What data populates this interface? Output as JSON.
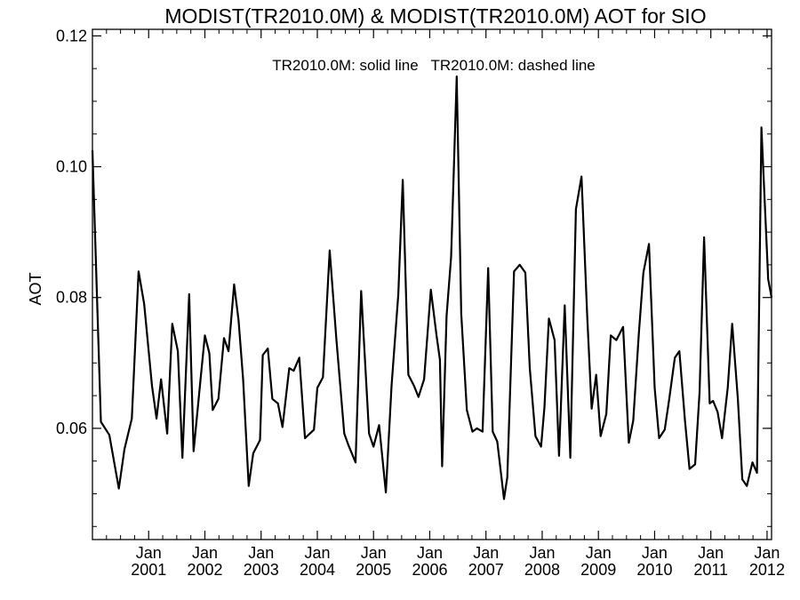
{
  "chart_data": {
    "type": "line",
    "title": "MODIST(TR2010.0M) & MODIST(TR2010.0M)  AOT for SIO",
    "annotation": "TR2010.0M: solid line   TR2010.0M: dashed line",
    "ylabel": "AOT",
    "xlabel": "",
    "ylim": [
      0.043,
      0.121
    ],
    "xlim": [
      2000.0,
      2012.08
    ],
    "grid": false,
    "y_ticks": [
      {
        "value": 0.06,
        "label": "0.06"
      },
      {
        "value": 0.08,
        "label": "0.08"
      },
      {
        "value": 0.1,
        "label": "0.10"
      },
      {
        "value": 0.12,
        "label": "0.12"
      }
    ],
    "x_ticks": [
      {
        "value": 2001.0,
        "month": "Jan",
        "year": "2001"
      },
      {
        "value": 2002.0,
        "month": "Jan",
        "year": "2002"
      },
      {
        "value": 2003.0,
        "month": "Jan",
        "year": "2003"
      },
      {
        "value": 2004.0,
        "month": "Jan",
        "year": "2004"
      },
      {
        "value": 2005.0,
        "month": "Jan",
        "year": "2005"
      },
      {
        "value": 2006.0,
        "month": "Jan",
        "year": "2006"
      },
      {
        "value": 2007.0,
        "month": "Jan",
        "year": "2007"
      },
      {
        "value": 2008.0,
        "month": "Jan",
        "year": "2008"
      },
      {
        "value": 2009.0,
        "month": "Jan",
        "year": "2009"
      },
      {
        "value": 2010.0,
        "month": "Jan",
        "year": "2010"
      },
      {
        "value": 2011.0,
        "month": "Jan",
        "year": "2011"
      },
      {
        "value": 2012.0,
        "month": "Jan",
        "year": "2012"
      }
    ],
    "x_minor_step": 0.25,
    "series": [
      {
        "style": "solid",
        "color": "#000000",
        "x": [
          2000.0,
          2000.15,
          2000.3,
          2000.47,
          2000.57,
          2000.7,
          2000.82,
          2000.92,
          2001.06,
          2001.14,
          2001.22,
          2001.33,
          2001.42,
          2001.52,
          2001.6,
          2001.72,
          2001.8,
          2001.92,
          2002.0,
          2002.08,
          2002.14,
          2002.24,
          2002.34,
          2002.42,
          2002.52,
          2002.6,
          2002.68,
          2002.78,
          2002.86,
          2002.98,
          2003.03,
          2003.12,
          2003.2,
          2003.3,
          2003.38,
          2003.5,
          2003.58,
          2003.68,
          2003.78,
          2003.94,
          2004.0,
          2004.1,
          2004.22,
          2004.34,
          2004.48,
          2004.55,
          2004.68,
          2004.78,
          2004.92,
          2005.0,
          2005.1,
          2005.22,
          2005.32,
          2005.44,
          2005.52,
          2005.62,
          2005.72,
          2005.8,
          2005.9,
          2006.02,
          2006.12,
          2006.18,
          2006.22,
          2006.3,
          2006.38,
          2006.48,
          2006.56,
          2006.66,
          2006.76,
          2006.84,
          2006.94,
          2007.04,
          2007.12,
          2007.2,
          2007.32,
          2007.38,
          2007.5,
          2007.6,
          2007.7,
          2007.78,
          2007.88,
          2007.98,
          2008.04,
          2008.12,
          2008.22,
          2008.3,
          2008.4,
          2008.5,
          2008.6,
          2008.7,
          2008.8,
          2008.88,
          2008.96,
          2009.04,
          2009.14,
          2009.22,
          2009.32,
          2009.44,
          2009.54,
          2009.62,
          2009.72,
          2009.8,
          2009.9,
          2010.0,
          2010.08,
          2010.18,
          2010.26,
          2010.36,
          2010.44,
          2010.54,
          2010.62,
          2010.72,
          2010.8,
          2010.88,
          2010.98,
          2011.04,
          2011.12,
          2011.2,
          2011.3,
          2011.38,
          2011.48,
          2011.56,
          2011.64,
          2011.74,
          2011.82,
          2011.9,
          2012.02,
          2012.08
        ],
        "y": [
          0.1025,
          0.061,
          0.059,
          0.0508,
          0.0568,
          0.0615,
          0.084,
          0.079,
          0.0665,
          0.0615,
          0.0675,
          0.0592,
          0.076,
          0.0718,
          0.0555,
          0.0805,
          0.0565,
          0.0672,
          0.0742,
          0.0715,
          0.0628,
          0.0645,
          0.0738,
          0.0718,
          0.082,
          0.0765,
          0.0675,
          0.0512,
          0.0562,
          0.0582,
          0.0712,
          0.0722,
          0.0645,
          0.0638,
          0.0602,
          0.0692,
          0.0688,
          0.0708,
          0.0585,
          0.0598,
          0.0662,
          0.0678,
          0.0872,
          0.0735,
          0.0592,
          0.0575,
          0.0548,
          0.081,
          0.0592,
          0.0572,
          0.0605,
          0.0502,
          0.0665,
          0.0805,
          0.098,
          0.0682,
          0.0665,
          0.0648,
          0.0675,
          0.0812,
          0.0742,
          0.0705,
          0.0542,
          0.0772,
          0.0862,
          0.1138,
          0.0775,
          0.0628,
          0.0595,
          0.06,
          0.0595,
          0.0845,
          0.0595,
          0.058,
          0.0492,
          0.0525,
          0.084,
          0.085,
          0.0838,
          0.0692,
          0.0588,
          0.0572,
          0.0632,
          0.0768,
          0.0735,
          0.0558,
          0.0788,
          0.0555,
          0.0935,
          0.0985,
          0.0772,
          0.063,
          0.0682,
          0.0588,
          0.0622,
          0.0742,
          0.0735,
          0.0755,
          0.0578,
          0.0612,
          0.0745,
          0.0838,
          0.0882,
          0.0662,
          0.0585,
          0.0598,
          0.0645,
          0.0708,
          0.0718,
          0.0612,
          0.0538,
          0.0545,
          0.0655,
          0.0892,
          0.0638,
          0.0642,
          0.0625,
          0.0585,
          0.0662,
          0.076,
          0.0645,
          0.0522,
          0.0512,
          0.0548,
          0.0532,
          0.106,
          0.0828,
          0.08
        ]
      }
    ]
  }
}
